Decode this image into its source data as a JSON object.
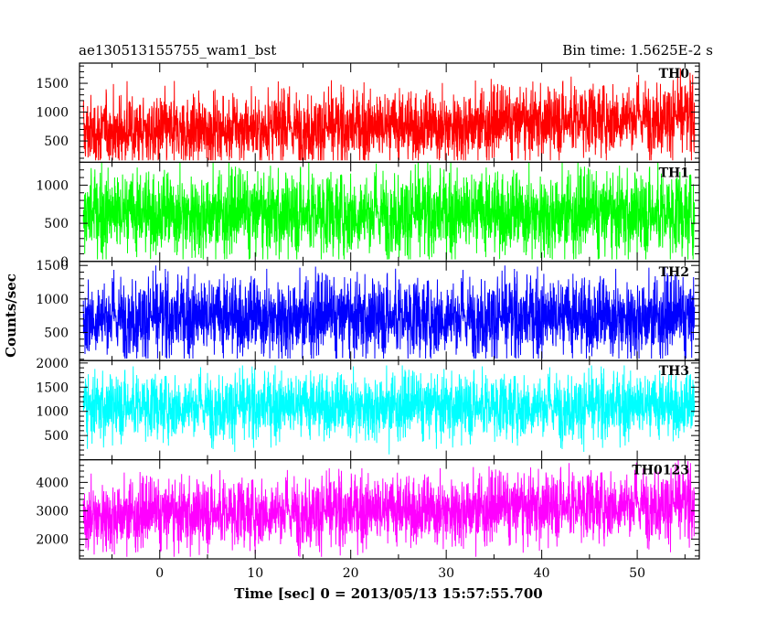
{
  "header": {
    "source_name": "ae130513155755_wam1_bst",
    "bin_time_label": "Bin time: 1.5625E-2 s"
  },
  "chart_data": {
    "type": "line",
    "title": "ae130513155755_wam1_bst",
    "subtitle": "Bin time: 1.5625E-2 s",
    "xlabel": "Time [sec] 0 = 2013/05/13 15:57:55.700",
    "ylabel": "Counts/sec",
    "xlim": [
      -8.4,
      56.5
    ],
    "x_ticks": [
      "0",
      "10",
      "20",
      "30",
      "40",
      "50"
    ],
    "grid": false,
    "panels": [
      {
        "name": "TH0",
        "color": "#ff0000",
        "ylim": [
          130,
          1850
        ],
        "y_ticks": [
          "500",
          "1000",
          "1500"
        ],
        "level": [
          [
            -8,
            650
          ],
          [
            10,
            700
          ],
          [
            30,
            750
          ],
          [
            48,
            900
          ],
          [
            56,
            930
          ]
        ],
        "spread": 300,
        "max_level": [
          [
            -8,
            1500
          ],
          [
            10,
            1650
          ],
          [
            30,
            1700
          ],
          [
            50,
            1850
          ],
          [
            56,
            1850
          ]
        ]
      },
      {
        "name": "TH1",
        "color": "#00ff00",
        "ylim": [
          0,
          1300
        ],
        "y_ticks": [
          "0",
          "500",
          "1000"
        ],
        "level": [
          [
            -8,
            620
          ],
          [
            56,
            620
          ]
        ],
        "spread": 270,
        "max_level": [
          [
            -8,
            1300
          ],
          [
            56,
            1300
          ]
        ]
      },
      {
        "name": "TH2",
        "color": "#0000ff",
        "ylim": [
          80,
          1560
        ],
        "y_ticks": [
          "500",
          "1000",
          "1500"
        ],
        "level": [
          [
            -8,
            720
          ],
          [
            56,
            720
          ]
        ],
        "spread": 290,
        "max_level": [
          [
            -8,
            1500
          ],
          [
            56,
            1500
          ]
        ]
      },
      {
        "name": "TH3",
        "color": "#00ffff",
        "ylim": [
          0,
          2050
        ],
        "y_ticks": [
          "500",
          "1000",
          "1500",
          "2000"
        ],
        "level": [
          [
            -8,
            1100
          ],
          [
            56,
            1100
          ]
        ],
        "spread": 330,
        "max_level": [
          [
            -8,
            1950
          ],
          [
            56,
            1950
          ]
        ]
      },
      {
        "name": "TH0123",
        "color": "#ff00ff",
        "ylim": [
          1300,
          4800
        ],
        "y_ticks": [
          "2000",
          "3000",
          "4000"
        ],
        "level": [
          [
            -8,
            2800
          ],
          [
            10,
            2950
          ],
          [
            30,
            3000
          ],
          [
            45,
            3200
          ],
          [
            56,
            3250
          ]
        ],
        "spread": 600,
        "max_level": [
          [
            -8,
            4300
          ],
          [
            10,
            4500
          ],
          [
            30,
            4500
          ],
          [
            50,
            4800
          ],
          [
            56,
            4800
          ]
        ]
      }
    ]
  }
}
